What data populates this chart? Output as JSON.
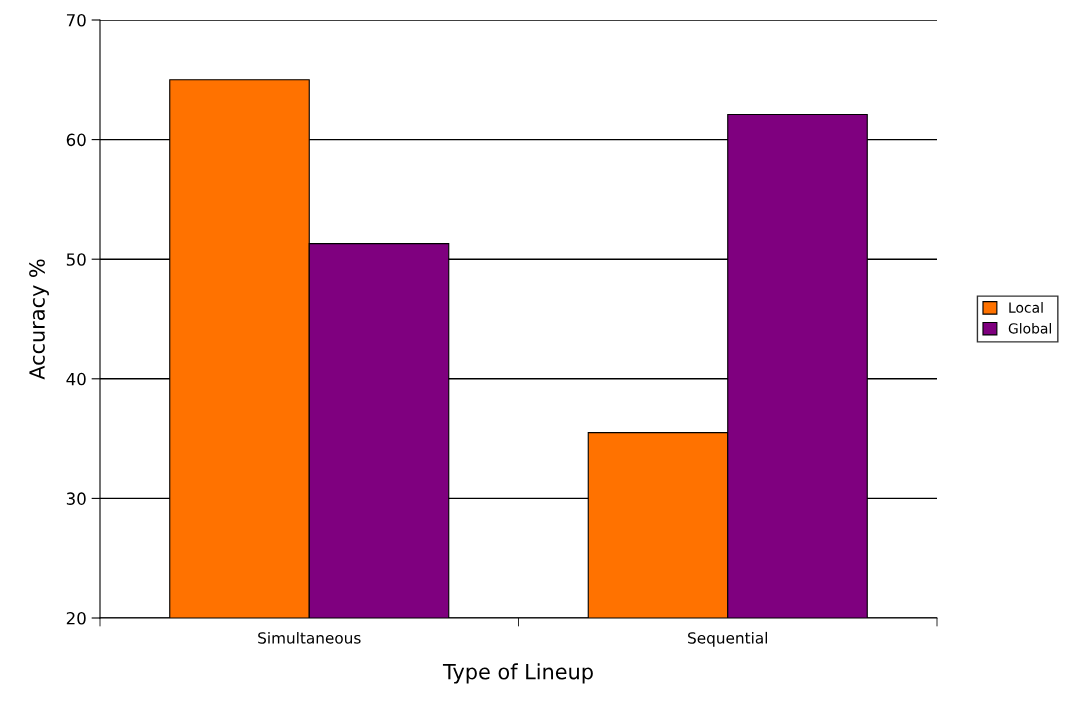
{
  "chart_data": {
    "type": "bar",
    "xlabel": "Type of Lineup",
    "ylabel": "Accuracy %",
    "categories": [
      "Simultaneous",
      "Sequential"
    ],
    "series": [
      {
        "name": "Local",
        "color": "#ff7200",
        "values": [
          65.0,
          35.5
        ]
      },
      {
        "name": "Global",
        "color": "#7f007f",
        "values": [
          51.3,
          62.1
        ]
      }
    ],
    "ylim": [
      20,
      70
    ],
    "yticks": [
      20,
      30,
      40,
      50,
      60,
      70
    ],
    "grid": "y",
    "legend": "right"
  }
}
